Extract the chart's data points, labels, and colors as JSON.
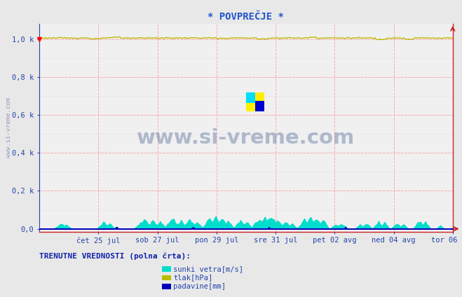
{
  "title": "* POVPREČJE *",
  "bg_color": "#e8e8e8",
  "plot_bg_color": "#f0f0f0",
  "title_color": "#2255cc",
  "ylabel_color": "#2244aa",
  "axis_color": "#2244aa",
  "watermark": "www.si-vreme.com",
  "watermark_color": "#1a3a7a",
  "ylabel_left": "www.si-vreme.com",
  "ytick_labels": [
    "0,0",
    "0,2 k",
    "0,4 k",
    "0,6 k",
    "0,8 k",
    "1,0 k"
  ],
  "ytick_values": [
    0.0,
    0.2,
    0.4,
    0.6,
    0.8,
    1.0
  ],
  "xtick_labels": [
    "čet 25 jul",
    "sob 27 jul",
    "pon 29 jul",
    "sre 31 jul",
    "pet 02 avg",
    "ned 04 avg",
    "tor 06 avg"
  ],
  "ylim": [
    -0.015,
    1.08
  ],
  "legend_title": "TRENUTNE VREDNOSTI (polna črta):",
  "legend_items": [
    {
      "label": "sunki vetra[m/s]",
      "color": "#00ddcc"
    },
    {
      "label": "tlak[hPa]",
      "color": "#bbbb00"
    },
    {
      "label": "padavine[mm]",
      "color": "#0000bb"
    }
  ],
  "grid_color": "#ffaaaa",
  "minor_grid_color": "#ddccee",
  "tlak_base": 1.005,
  "n_points": 336
}
